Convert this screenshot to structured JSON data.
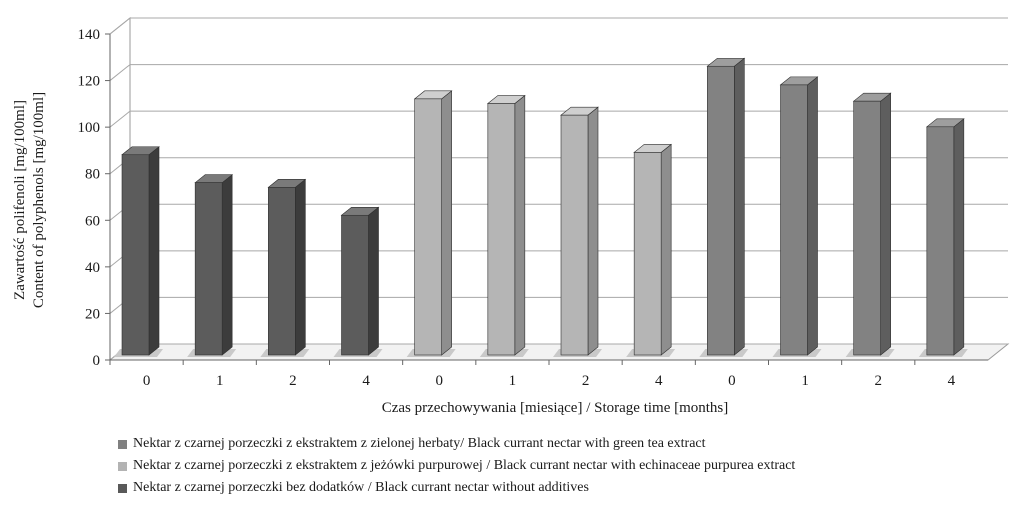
{
  "chart_data": {
    "type": "bar",
    "categories": [
      "0",
      "1",
      "2",
      "4",
      "0",
      "1",
      "2",
      "4",
      "0",
      "1",
      "2",
      "4"
    ],
    "values": [
      86,
      74,
      72,
      60,
      110,
      108,
      103,
      87,
      124,
      116,
      109,
      98
    ],
    "bar_groups": [
      0,
      0,
      0,
      0,
      1,
      1,
      1,
      1,
      2,
      2,
      2,
      2
    ],
    "ylim": [
      0,
      140
    ],
    "yticks": [
      0,
      20,
      40,
      60,
      80,
      100,
      120,
      140
    ],
    "grid": true,
    "three_d": true,
    "ylabel_line1": "Zawartość polifenoli [mg/100ml]",
    "ylabel_line2": "Content of polyphenols [mg/100ml]",
    "xlabel": "Czas przechowywania [miesiące] / Storage time [months]",
    "legend_position": "bottom",
    "legend": [
      {
        "name": "Nektar z czarnej porzeczki z ekstraktem z zielonej herbaty/ Black currant nectar  with green tea extract",
        "color": "#808080"
      },
      {
        "name": "Nektar z czarnej porzeczki z ekstraktem z jeżówki purpurowej / Black currant nectar  with echinaceae purpurea extract",
        "color": "#b3b3b3"
      },
      {
        "name": "Nektar z czarnej porzeczki bez dodatków / Black currant nectar  without additives",
        "color": "#595959"
      }
    ],
    "group_colors": [
      {
        "front": "#5c5c5c",
        "side": "#3c3c3c",
        "top": "#7a7a7a"
      },
      {
        "front": "#b5b5b5",
        "side": "#8e8e8e",
        "top": "#cfcfcf"
      },
      {
        "front": "#828282",
        "side": "#5e5e5e",
        "top": "#9e9e9e"
      }
    ]
  }
}
